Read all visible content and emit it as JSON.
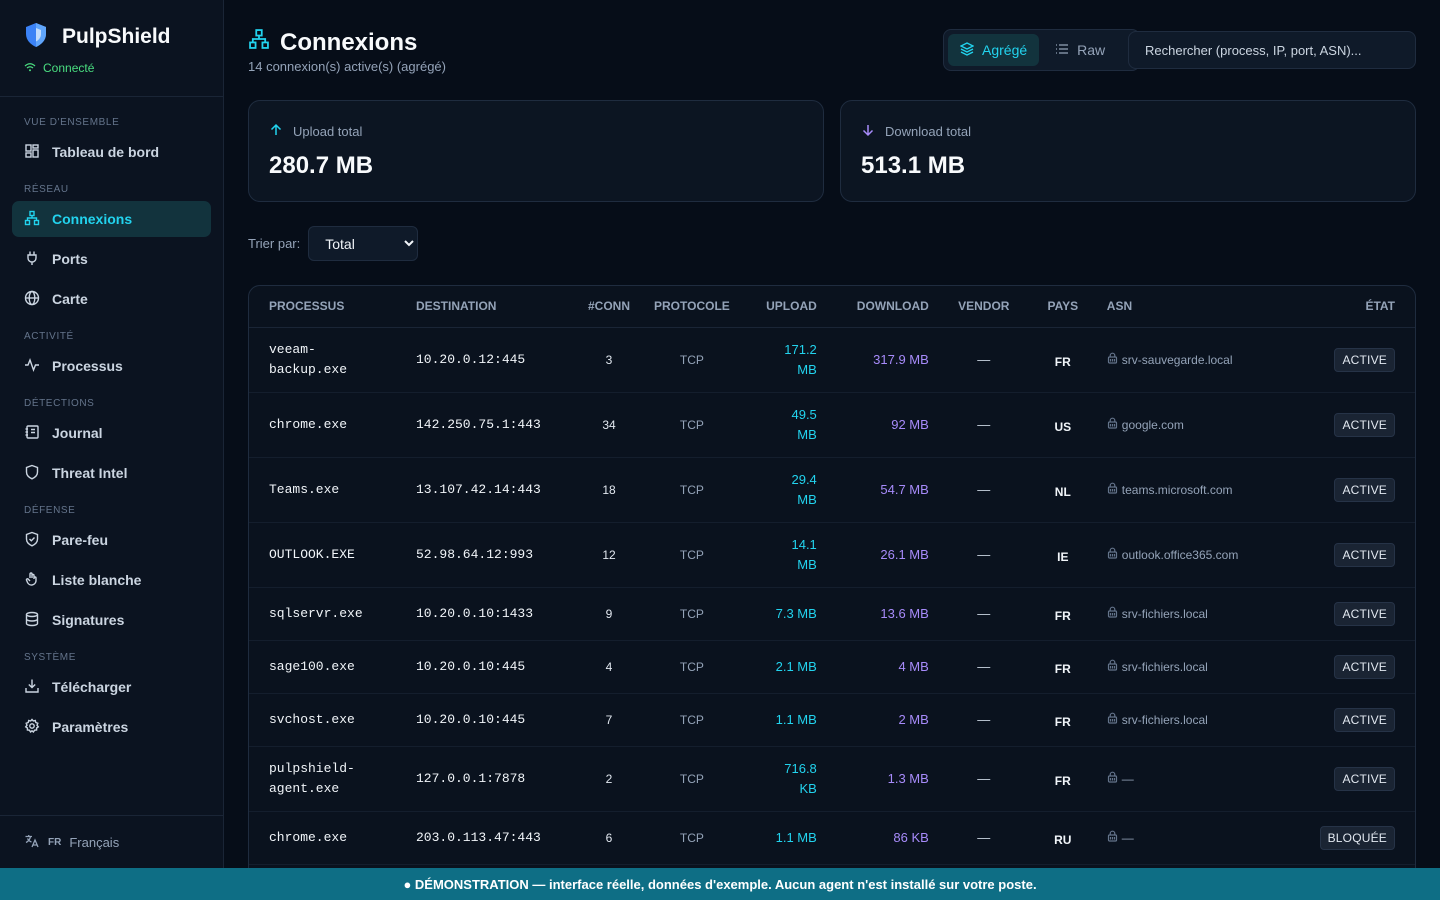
{
  "app": {
    "name": "PulpShield",
    "status": "Connecté"
  },
  "sidebar": {
    "sections": [
      {
        "title": "VUE D'ENSEMBLE",
        "items": [
          {
            "label": "Tableau de bord",
            "icon": "dashboard-icon"
          }
        ]
      },
      {
        "title": "RÉSEAU",
        "items": [
          {
            "label": "Connexions",
            "icon": "network-icon",
            "active": true
          },
          {
            "label": "Ports",
            "icon": "plug-icon"
          },
          {
            "label": "Carte",
            "icon": "globe-icon"
          }
        ]
      },
      {
        "title": "ACTIVITÉ",
        "items": [
          {
            "label": "Processus",
            "icon": "activity-icon"
          }
        ]
      },
      {
        "title": "DÉTECTIONS",
        "items": [
          {
            "label": "Journal",
            "icon": "journal-icon"
          },
          {
            "label": "Threat Intel",
            "icon": "shield-icon"
          }
        ]
      },
      {
        "title": "DÉFENSE",
        "items": [
          {
            "label": "Pare-feu",
            "icon": "shield-check-icon"
          },
          {
            "label": "Liste blanche",
            "icon": "hand-icon"
          },
          {
            "label": "Signatures",
            "icon": "database-icon"
          }
        ]
      },
      {
        "title": "SYSTÈME",
        "items": [
          {
            "label": "Télécharger",
            "icon": "download-icon"
          },
          {
            "label": "Paramètres",
            "icon": "gear-icon"
          }
        ]
      }
    ],
    "language_code": "FR",
    "language_label": "Français"
  },
  "header": {
    "title": "Connexions",
    "subtitle": "14 connexion(s) active(s) (agrégé)",
    "view_toggle": {
      "aggregated": "Agrégé",
      "raw": "Raw"
    },
    "search_placeholder": "Rechercher (process, IP, port, ASN)..."
  },
  "stats": {
    "upload_label": "Upload total",
    "upload_value": "280.7 MB",
    "download_label": "Download total",
    "download_value": "513.1 MB"
  },
  "sort": {
    "label": "Trier par:",
    "selected": "Total"
  },
  "table": {
    "columns": [
      "PROCESSUS",
      "DESTINATION",
      "#CONN",
      "PROTOCOLE",
      "UPLOAD",
      "DOWNLOAD",
      "VENDOR",
      "PAYS",
      "ASN",
      "ÉTAT"
    ],
    "rows": [
      {
        "process": "veeam-\nbackup.exe",
        "destination": "10.20.0.12:445",
        "conn": "3",
        "protocol": "TCP",
        "upload": "171.2\nMB",
        "download": "317.9 MB",
        "vendor": "—",
        "country": "FR",
        "asn": "srv-sauvegarde.local",
        "state": "ACTIVE"
      },
      {
        "process": "chrome.exe",
        "destination": "142.250.75.1:443",
        "conn": "34",
        "protocol": "TCP",
        "upload": "49.5\nMB",
        "download": "92 MB",
        "vendor": "—",
        "country": "US",
        "asn": "google.com",
        "state": "ACTIVE"
      },
      {
        "process": "Teams.exe",
        "destination": "13.107.42.14:443",
        "conn": "18",
        "protocol": "TCP",
        "upload": "29.4\nMB",
        "download": "54.7 MB",
        "vendor": "—",
        "country": "NL",
        "asn": "teams.microsoft.com",
        "state": "ACTIVE"
      },
      {
        "process": "OUTLOOK.EXE",
        "destination": "52.98.64.12:993",
        "conn": "12",
        "protocol": "TCP",
        "upload": "14.1\nMB",
        "download": "26.1 MB",
        "vendor": "—",
        "country": "IE",
        "asn": "outlook.office365.com",
        "state": "ACTIVE"
      },
      {
        "process": "sqlservr.exe",
        "destination": "10.20.0.10:1433",
        "conn": "9",
        "protocol": "TCP",
        "upload": "7.3 MB",
        "download": "13.6 MB",
        "vendor": "—",
        "country": "FR",
        "asn": "srv-fichiers.local",
        "state": "ACTIVE"
      },
      {
        "process": "sage100.exe",
        "destination": "10.20.0.10:445",
        "conn": "4",
        "protocol": "TCP",
        "upload": "2.1 MB",
        "download": "4 MB",
        "vendor": "—",
        "country": "FR",
        "asn": "srv-fichiers.local",
        "state": "ACTIVE"
      },
      {
        "process": "svchost.exe",
        "destination": "10.20.0.10:445",
        "conn": "7",
        "protocol": "TCP",
        "upload": "1.1 MB",
        "download": "2 MB",
        "vendor": "—",
        "country": "FR",
        "asn": "srv-fichiers.local",
        "state": "ACTIVE"
      },
      {
        "process": "pulpshield-\nagent.exe",
        "destination": "127.0.0.1:7878",
        "conn": "2",
        "protocol": "TCP",
        "upload": "716.8\nKB",
        "download": "1.3 MB",
        "vendor": "—",
        "country": "FR",
        "asn": "—",
        "state": "ACTIVE"
      },
      {
        "process": "chrome.exe",
        "destination": "203.0.113.47:443",
        "conn": "6",
        "protocol": "TCP",
        "upload": "1.1 MB",
        "download": "86 KB",
        "vendor": "—",
        "country": "RU",
        "asn": "—",
        "state": "BLOQUÉE"
      }
    ]
  },
  "banner": {
    "text": "● DÉMONSTRATION — interface réelle, données d'exemple. Aucun agent n'est installé sur votre poste."
  },
  "colors": {
    "accent": "#22d3ee",
    "upload": "#22d3ee",
    "download": "#a78bfa",
    "status_ok": "#4ade80",
    "banner": "#0e6e85"
  }
}
